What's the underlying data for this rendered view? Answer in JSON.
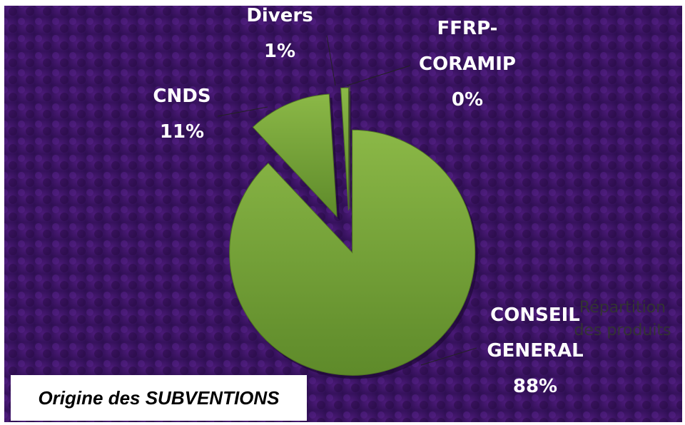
{
  "chart_data": {
    "type": "pie",
    "title": "Origine des SUBVENTIONS",
    "subtitle": "Répartition des produits",
    "categories": [
      "CONSEIL GENERAL",
      "CNDS",
      "Divers",
      "FFRP-CORAMIP"
    ],
    "values": [
      88,
      11,
      1,
      0
    ],
    "value_labels": [
      "88%",
      "11%",
      "1%",
      "0%"
    ],
    "color": "#77a33a"
  }
}
